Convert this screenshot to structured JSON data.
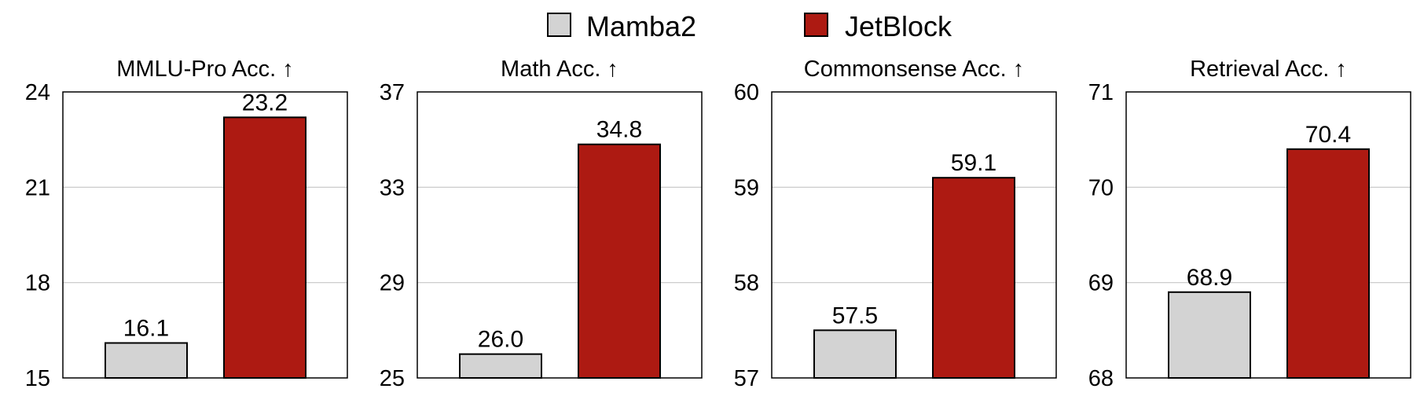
{
  "legend": {
    "position": "top-center",
    "items": [
      {
        "label": "Mamba2",
        "color": "#d3d3d3"
      },
      {
        "label": "JetBlock",
        "color": "#ad1a12"
      }
    ]
  },
  "chart_data": [
    {
      "type": "bar",
      "title": "MMLU-Pro Acc. ↑",
      "categories": [
        "Mamba2",
        "JetBlock"
      ],
      "values": [
        16.1,
        23.2
      ],
      "value_labels": [
        "16.1",
        "23.2"
      ],
      "ylim": [
        15,
        24
      ],
      "yticks": [
        15,
        18,
        21,
        24
      ],
      "grid": true
    },
    {
      "type": "bar",
      "title": "Math Acc. ↑",
      "categories": [
        "Mamba2",
        "JetBlock"
      ],
      "values": [
        26.0,
        34.8
      ],
      "value_labels": [
        "26.0",
        "34.8"
      ],
      "ylim": [
        25,
        37
      ],
      "yticks": [
        25,
        29,
        33,
        37
      ],
      "grid": true
    },
    {
      "type": "bar",
      "title": "Commonsense Acc. ↑",
      "categories": [
        "Mamba2",
        "JetBlock"
      ],
      "values": [
        57.5,
        59.1
      ],
      "value_labels": [
        "57.5",
        "59.1"
      ],
      "ylim": [
        57,
        60
      ],
      "yticks": [
        57,
        58,
        59,
        60
      ],
      "grid": true
    },
    {
      "type": "bar",
      "title": "Retrieval Acc. ↑",
      "categories": [
        "Mamba2",
        "JetBlock"
      ],
      "values": [
        68.9,
        70.4
      ],
      "value_labels": [
        "68.9",
        "70.4"
      ],
      "ylim": [
        68,
        71
      ],
      "yticks": [
        68,
        69,
        70,
        71
      ],
      "grid": true
    }
  ]
}
